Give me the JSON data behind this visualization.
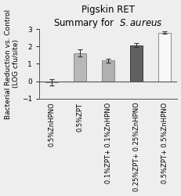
{
  "title_line1": "Pigskin RET",
  "title_line2": "Summary for  $\\it{S. aureus}$",
  "ylabel": "Bacterial Reduction vs. Control\n(LOG cfu/site)",
  "categories": [
    "0.5%ZnHPNO",
    "0.5%ZPT",
    "0.1%ZPT+ 0.1%ZnHPNO",
    "0.25%ZPT+ 0.25%ZnHPNO",
    "0.5%ZPT+ 0.5%ZnHPNO"
  ],
  "values": [
    -0.07,
    1.62,
    1.18,
    2.07,
    2.8
  ],
  "errors": [
    0.18,
    0.2,
    0.1,
    0.12,
    0.07
  ],
  "bar_colors": [
    "#c0c0c0",
    "#b8b8b8",
    "#b0b0b0",
    "#606060",
    "#f8f8f8"
  ],
  "bar_edge_colors": [
    "#888888",
    "#888888",
    "#888888",
    "#383838",
    "#888888"
  ],
  "ylim": [
    -1,
    3
  ],
  "yticks": [
    -1,
    0,
    1,
    2,
    3
  ],
  "title_fontsize": 8.5,
  "label_fontsize": 6.5,
  "tick_fontsize": 6.5,
  "xtick_fontsize": 6.0,
  "bg_color": "#eeeeee"
}
